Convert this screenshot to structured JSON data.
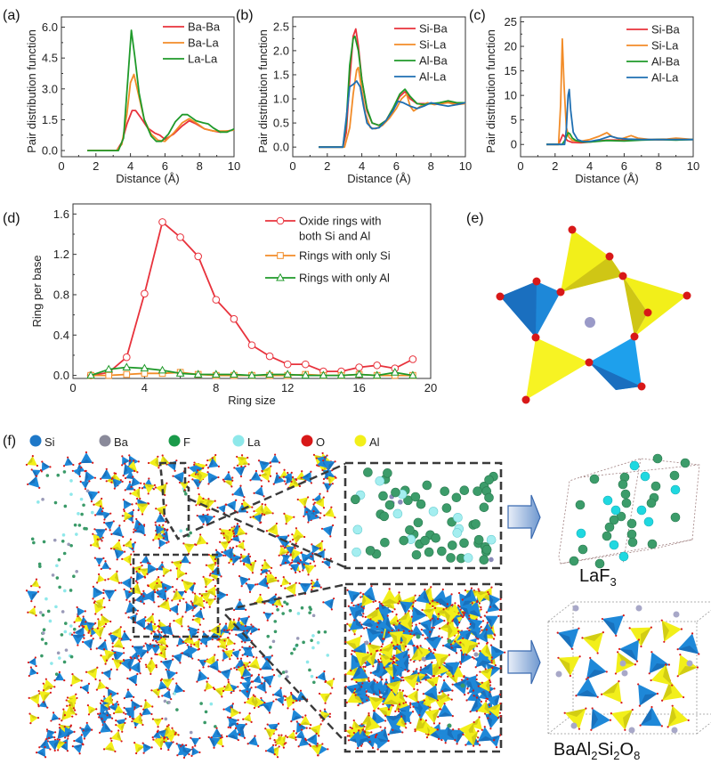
{
  "panel_labels": {
    "a": "(a)",
    "b": "(b)",
    "c": "(c)",
    "d": "(d)",
    "e": "(e)",
    "f": "(f)"
  },
  "colors": {
    "red": "#e8323c",
    "orange": "#f28c28",
    "green": "#1f9a2a",
    "blue": "#1f6fb2",
    "si": "#1e88d8",
    "al": "#f2ef1a",
    "o": "#d81818",
    "ba": "#9a9ab8",
    "f": "#3a9a68",
    "la": "#8ee8ea"
  },
  "chart_data": [
    {
      "id": "a",
      "type": "line",
      "title": "",
      "xlabel": "Distance (Å)",
      "ylabel": "Pair distribution function",
      "xlim": [
        0,
        10
      ],
      "ylim": [
        -0.3,
        6.5
      ],
      "xticks": [
        "0",
        "2",
        "4",
        "6",
        "8",
        "10"
      ],
      "yticks": [
        "0.0",
        "1.5",
        "3.0",
        "4.5",
        "6.0"
      ],
      "legend_position": "top-right",
      "series": [
        {
          "name": "Ba-Ba",
          "color": "#e8323c",
          "x": [
            1.5,
            3.2,
            3.5,
            3.8,
            4.1,
            4.3,
            4.6,
            5.0,
            5.4,
            5.7,
            6.0,
            6.5,
            7.0,
            7.4,
            7.8,
            8.3,
            8.8,
            9.2,
            9.6,
            10
          ],
          "y": [
            0,
            0,
            0.4,
            1.3,
            1.95,
            1.95,
            1.6,
            1.1,
            0.85,
            0.75,
            0.55,
            0.8,
            1.2,
            1.45,
            1.3,
            1.05,
            0.95,
            0.9,
            0.95,
            1.0
          ]
        },
        {
          "name": "Ba-La",
          "color": "#f28c28",
          "x": [
            1.5,
            3.2,
            3.5,
            3.8,
            4.0,
            4.2,
            4.5,
            4.8,
            5.2,
            5.6,
            6.0,
            6.5,
            7.0,
            7.4,
            7.8,
            8.3,
            8.8,
            9.2,
            9.6,
            10
          ],
          "y": [
            0,
            0,
            0.3,
            1.8,
            3.3,
            3.7,
            2.6,
            1.5,
            0.8,
            0.5,
            0.45,
            0.85,
            1.35,
            1.55,
            1.35,
            1.05,
            0.95,
            0.95,
            0.95,
            1.0
          ]
        },
        {
          "name": "La-La",
          "color": "#1f9a2a",
          "x": [
            1.5,
            3.3,
            3.6,
            3.85,
            4.05,
            4.25,
            4.5,
            4.8,
            5.2,
            5.5,
            5.8,
            6.2,
            6.6,
            7.0,
            7.3,
            7.8,
            8.2,
            8.5,
            8.8,
            9.2,
            9.6,
            10
          ],
          "y": [
            0,
            0,
            0.6,
            3.5,
            5.85,
            4.6,
            2.8,
            1.5,
            0.7,
            0.45,
            0.45,
            0.8,
            1.4,
            1.75,
            1.75,
            1.45,
            1.35,
            1.3,
            1.1,
            0.9,
            0.9,
            1.05
          ]
        }
      ]
    },
    {
      "id": "b",
      "type": "line",
      "title": "",
      "xlabel": "Distance (Å)",
      "ylabel": "Pair distribution function",
      "xlim": [
        0,
        10
      ],
      "ylim": [
        -0.2,
        2.7
      ],
      "xticks": [
        "0",
        "2",
        "4",
        "6",
        "8",
        "10"
      ],
      "yticks": [
        "0.0",
        "0.5",
        "1.0",
        "1.5",
        "2.0",
        "2.5"
      ],
      "legend_position": "top-right",
      "series": [
        {
          "name": "Si-Ba",
          "color": "#e8323c",
          "x": [
            1.5,
            2.9,
            3.1,
            3.3,
            3.5,
            3.65,
            3.8,
            4.0,
            4.3,
            4.6,
            5.0,
            5.4,
            5.8,
            6.2,
            6.5,
            6.8,
            7.2,
            7.6,
            8.0,
            8.5,
            9.0,
            9.5,
            10
          ],
          "y": [
            0,
            0,
            0.3,
            1.4,
            2.3,
            2.45,
            2.1,
            1.4,
            0.75,
            0.5,
            0.45,
            0.55,
            0.8,
            1.05,
            1.15,
            1.0,
            0.9,
            0.9,
            0.9,
            0.9,
            0.95,
            0.9,
            0.92
          ]
        },
        {
          "name": "Si-La",
          "color": "#f28c28",
          "x": [
            1.5,
            3.0,
            3.3,
            3.5,
            3.7,
            3.8,
            3.95,
            4.2,
            4.5,
            4.8,
            5.2,
            5.6,
            6.0,
            6.3,
            6.6,
            6.8,
            7.0,
            7.4,
            7.8,
            8.2,
            8.6,
            9.0,
            9.5,
            10
          ],
          "y": [
            0,
            0,
            0.4,
            1.1,
            1.6,
            1.65,
            1.3,
            0.7,
            0.4,
            0.38,
            0.45,
            0.6,
            0.8,
            1.0,
            1.1,
            0.85,
            0.75,
            0.85,
            0.92,
            0.88,
            0.9,
            0.92,
            0.88,
            0.9
          ]
        },
        {
          "name": "Al-Ba",
          "color": "#1f9a2a",
          "x": [
            1.5,
            2.9,
            3.1,
            3.3,
            3.5,
            3.6,
            3.8,
            4.0,
            4.3,
            4.6,
            5.0,
            5.4,
            5.8,
            6.2,
            6.5,
            6.8,
            7.2,
            7.6,
            8.0,
            8.5,
            9.0,
            9.5,
            10
          ],
          "y": [
            0,
            0,
            0.5,
            1.7,
            2.25,
            2.3,
            2.0,
            1.4,
            0.8,
            0.5,
            0.45,
            0.55,
            0.8,
            1.1,
            1.2,
            1.05,
            0.9,
            0.88,
            0.9,
            0.92,
            0.96,
            0.92,
            0.92
          ]
        },
        {
          "name": "Al-La",
          "color": "#1f6fb2",
          "x": [
            1.5,
            2.9,
            3.1,
            3.3,
            3.5,
            3.7,
            3.9,
            4.1,
            4.3,
            4.6,
            5.0,
            5.4,
            5.8,
            6.1,
            6.4,
            6.8,
            7.2,
            7.6,
            8.0,
            8.5,
            9.0,
            9.5,
            10
          ],
          "y": [
            0,
            0,
            0.6,
            1.25,
            1.3,
            1.37,
            1.25,
            0.85,
            0.5,
            0.38,
            0.4,
            0.55,
            0.75,
            0.95,
            0.92,
            0.85,
            0.8,
            0.85,
            0.92,
            0.88,
            0.85,
            0.88,
            0.92
          ]
        }
      ]
    },
    {
      "id": "c",
      "type": "line",
      "title": "",
      "xlabel": "Distance (Å)",
      "ylabel": "Pair distribution function",
      "xlim": [
        0,
        10
      ],
      "ylim": [
        -2.5,
        26
      ],
      "xticks": [
        "0",
        "2",
        "4",
        "6",
        "8",
        "10"
      ],
      "yticks": [
        "0",
        "5",
        "10",
        "15",
        "20",
        "25"
      ],
      "legend_position": "top-right",
      "series": [
        {
          "name": "Si-Ba",
          "color": "#e8323c",
          "x": [
            1.5,
            2.2,
            2.35,
            2.45,
            2.55,
            2.7,
            3.0,
            3.5,
            4.0,
            5.0,
            6.0,
            7.0,
            8.0,
            9.0,
            10
          ],
          "y": [
            0,
            0,
            1.2,
            2.0,
            1.6,
            0.8,
            0.4,
            0.35,
            0.5,
            0.9,
            0.9,
            1.0,
            0.95,
            1.0,
            1.0
          ]
        },
        {
          "name": "Si-La",
          "color": "#f28c28",
          "x": [
            1.5,
            2.2,
            2.32,
            2.42,
            2.52,
            2.65,
            2.8,
            3.0,
            3.4,
            4.0,
            4.5,
            5.0,
            5.3,
            5.8,
            6.4,
            6.8,
            7.5,
            8.5,
            9.0,
            10
          ],
          "y": [
            0,
            0,
            8,
            21.5,
            12,
            3.5,
            1.5,
            0.8,
            0.6,
            1.0,
            1.6,
            2.4,
            1.6,
            1.1,
            1.8,
            1.3,
            1.0,
            1.1,
            1.3,
            1.0
          ]
        },
        {
          "name": "Al-Ba",
          "color": "#1f9a2a",
          "x": [
            1.5,
            2.4,
            2.6,
            2.75,
            2.85,
            3.0,
            3.2,
            3.6,
            4.0,
            5.0,
            6.0,
            7.0,
            8.0,
            9.0,
            10
          ],
          "y": [
            0,
            0,
            1.0,
            2.4,
            2.2,
            1.3,
            0.8,
            0.5,
            0.5,
            0.8,
            0.7,
            0.9,
            1.0,
            0.9,
            1.0
          ]
        },
        {
          "name": "Al-La",
          "color": "#1f6fb2",
          "x": [
            1.5,
            2.55,
            2.65,
            2.75,
            2.82,
            2.9,
            3.05,
            3.3,
            3.6,
            4.0,
            4.6,
            5.2,
            5.6,
            6.2,
            7.0,
            8.0,
            9.0,
            10
          ],
          "y": [
            0,
            0,
            3,
            10,
            11.2,
            7,
            2.5,
            1.0,
            0.6,
            0.6,
            1.0,
            1.7,
            1.3,
            1.1,
            1.0,
            1.0,
            1.0,
            1.0
          ]
        }
      ]
    },
    {
      "id": "d",
      "type": "line",
      "title": "",
      "xlabel": "Ring size",
      "ylabel": "Ring per base",
      "xlim": [
        0,
        20
      ],
      "ylim": [
        -0.03,
        1.7
      ],
      "xticks": [
        "0",
        "4",
        "8",
        "12",
        "16",
        "20"
      ],
      "yticks": [
        "0.0",
        "0.4",
        "0.8",
        "1.2",
        "1.6"
      ],
      "legend_position": "top-right",
      "series": [
        {
          "name": "Oxide rings with both Si and Al",
          "legend_lines": [
            "Oxide  rings  with",
            "both Si and Al"
          ],
          "color": "#e8323c",
          "marker": "circle",
          "x": [
            1,
            2,
            3,
            4,
            5,
            6,
            7,
            8,
            9,
            10,
            11,
            12,
            13,
            14,
            15,
            16,
            17,
            18,
            19
          ],
          "y": [
            0,
            0.03,
            0.18,
            0.81,
            1.52,
            1.37,
            1.18,
            0.75,
            0.56,
            0.3,
            0.19,
            0.11,
            0.11,
            0.04,
            0.04,
            0.08,
            0.1,
            0.07,
            0.16
          ]
        },
        {
          "name": "Rings with only Si",
          "legend_lines": [
            "Rings with only Si"
          ],
          "color": "#f28c28",
          "marker": "square",
          "x": [
            1,
            2,
            3,
            4,
            5,
            6,
            7,
            8,
            9,
            10,
            11,
            12,
            13,
            14,
            15,
            16,
            17,
            18,
            19
          ],
          "y": [
            0,
            0,
            0.01,
            0.02,
            0.02,
            0.03,
            0.01,
            0.0,
            0.0,
            0.0,
            0.0,
            0.0,
            0.01,
            0.0,
            0.0,
            0.01,
            0.0,
            0.0,
            0.0
          ]
        },
        {
          "name": "Rings with only Al",
          "legend_lines": [
            "Rings with only Al"
          ],
          "color": "#1f9a2a",
          "marker": "triangle",
          "x": [
            1,
            2,
            3,
            4,
            5,
            6,
            7,
            8,
            9,
            10,
            11,
            12,
            13,
            14,
            15,
            16,
            17,
            18,
            19
          ],
          "y": [
            0,
            0.06,
            0.08,
            0.07,
            0.05,
            0.02,
            0.01,
            0.01,
            0.01,
            0.0,
            0.01,
            0.01,
            0.0,
            0.0,
            0.0,
            0.01,
            0.0,
            0.03,
            0.0
          ]
        }
      ]
    }
  ],
  "panel_f": {
    "legend": [
      {
        "label": "Si",
        "color": "#1e78c8"
      },
      {
        "label": "Ba",
        "color": "#8a8a9a"
      },
      {
        "label": "F",
        "color": "#1a9a4a"
      },
      {
        "label": "La",
        "color": "#8ee8ea"
      },
      {
        "label": "O",
        "color": "#d81818"
      },
      {
        "label": "Al",
        "color": "#f2ef1a"
      }
    ],
    "crystal_1_label": "LaF",
    "crystal_1_sub": "3",
    "crystal_2_parts": [
      {
        "text": "BaAl",
        "sub": false
      },
      {
        "text": "2",
        "sub": true
      },
      {
        "text": "Si",
        "sub": false
      },
      {
        "text": "2",
        "sub": true
      },
      {
        "text": "O",
        "sub": false
      },
      {
        "text": "8",
        "sub": true
      }
    ]
  }
}
